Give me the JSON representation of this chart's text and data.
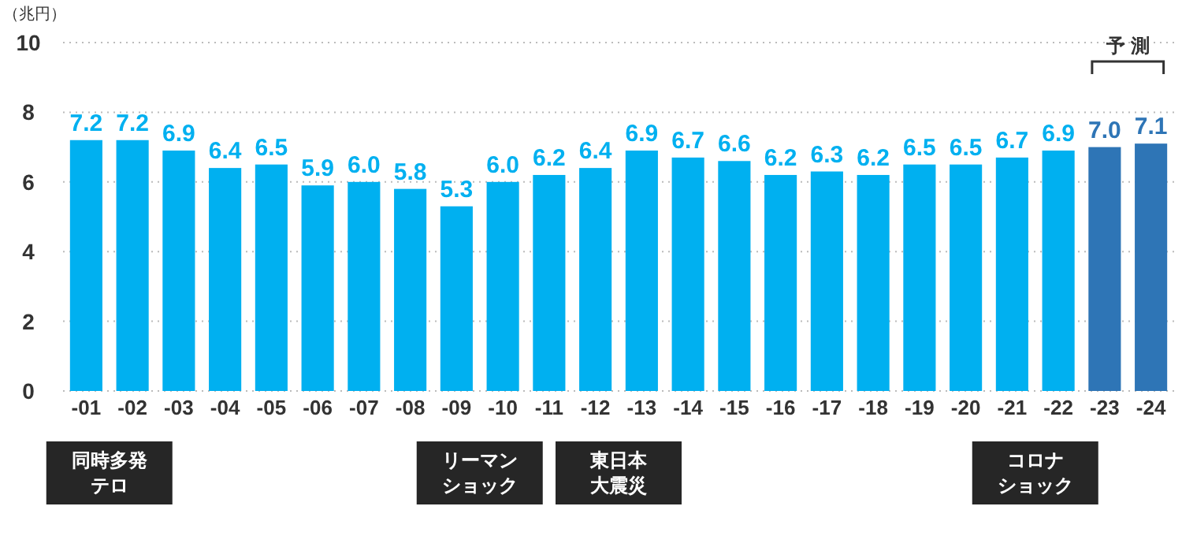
{
  "chart_data": {
    "type": "bar",
    "ylabel": "（兆円）",
    "categories": [
      "-01",
      "-02",
      "-03",
      "-04",
      "-05",
      "-06",
      "-07",
      "-08",
      "-09",
      "-10",
      "-11",
      "-12",
      "-13",
      "-14",
      "-15",
      "-16",
      "-17",
      "-18",
      "-19",
      "-20",
      "-21",
      "-22",
      "-23",
      "-24"
    ],
    "values": [
      7.2,
      7.2,
      6.9,
      6.4,
      6.5,
      5.9,
      6.0,
      5.8,
      5.3,
      6.0,
      6.2,
      6.4,
      6.9,
      6.7,
      6.6,
      6.2,
      6.3,
      6.2,
      6.5,
      6.5,
      6.7,
      6.9,
      7.0,
      7.1
    ],
    "colors": [
      "#00b0f0",
      "#00b0f0",
      "#00b0f0",
      "#00b0f0",
      "#00b0f0",
      "#00b0f0",
      "#00b0f0",
      "#00b0f0",
      "#00b0f0",
      "#00b0f0",
      "#00b0f0",
      "#00b0f0",
      "#00b0f0",
      "#00b0f0",
      "#00b0f0",
      "#00b0f0",
      "#00b0f0",
      "#00b0f0",
      "#00b0f0",
      "#00b0f0",
      "#00b0f0",
      "#00b0f0",
      "#2e75b6",
      "#2e75b6"
    ],
    "value_labels": [
      "7.2",
      "7.2",
      "6.9",
      "6.4",
      "6.5",
      "5.9",
      "6.0",
      "5.8",
      "5.3",
      "6.0",
      "6.2",
      "6.4",
      "6.9",
      "6.7",
      "6.6",
      "6.2",
      "6.3",
      "6.2",
      "6.5",
      "6.5",
      "6.7",
      "6.9",
      "7.0",
      "7.1"
    ],
    "ylim": [
      0,
      10
    ],
    "yticks": [
      0,
      2,
      4,
      6,
      8,
      10
    ],
    "grid": "y",
    "annotations": [
      "同時多発テロ",
      "リーマンショック",
      "東日本大震災",
      "コロナショック",
      "予 測"
    ]
  }
}
